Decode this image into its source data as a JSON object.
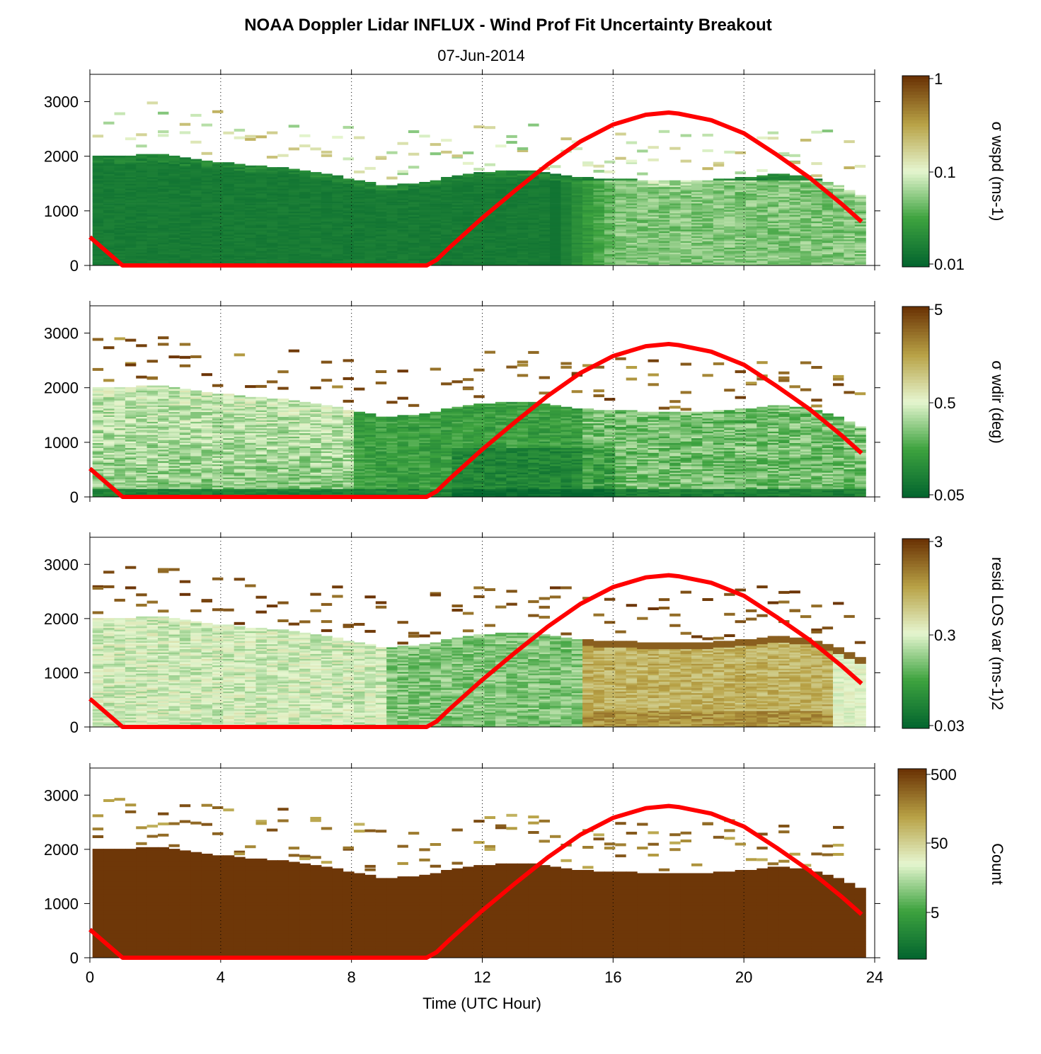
{
  "title": "NOAA Doppler Lidar INFLUX - Wind Prof Fit Uncertainty Breakout",
  "subtitle": "07-Jun-2014",
  "xlabel": "Time (UTC Hour)",
  "colors": {
    "dark_green": "#04662f",
    "mid_green": "#3ea33f",
    "light_green": "#e6f6d0",
    "tan": "#b8a246",
    "dark_brown": "#6b3305",
    "sun_line": "#ff0000"
  },
  "chart_data": [
    {
      "type": "heatmap",
      "panel": "sigma-wspd",
      "colorbar_label": "σ wspd (ms-1)",
      "colorbar_ticks": [
        "1",
        "0.1",
        "0.01"
      ],
      "xlim": [
        0,
        24
      ],
      "ylim": [
        0,
        3500
      ],
      "x_ticks": [
        "0",
        "4",
        "8",
        "12",
        "16",
        "20",
        "24"
      ],
      "y_ticks": [
        "0",
        "1000",
        "2000",
        "3000"
      ],
      "grid": "vertical dotted",
      "log_scale": true
    },
    {
      "type": "heatmap",
      "panel": "sigma-wdir",
      "colorbar_label": "σ wdir (deg)",
      "colorbar_ticks": [
        "5",
        "0.5",
        "0.05"
      ],
      "xlim": [
        0,
        24
      ],
      "ylim": [
        0,
        3500
      ],
      "x_ticks": [
        "0",
        "4",
        "8",
        "12",
        "16",
        "20",
        "24"
      ],
      "y_ticks": [
        "0",
        "1000",
        "2000",
        "3000"
      ],
      "grid": "vertical dotted",
      "log_scale": true
    },
    {
      "type": "heatmap",
      "panel": "resid-los-var",
      "colorbar_label": "resid LOS var (ms-1)2",
      "colorbar_ticks": [
        "3",
        "0.3",
        "0.03"
      ],
      "xlim": [
        0,
        24
      ],
      "ylim": [
        0,
        3500
      ],
      "x_ticks": [
        "0",
        "4",
        "8",
        "12",
        "16",
        "20",
        "24"
      ],
      "y_ticks": [
        "0",
        "1000",
        "2000",
        "3000"
      ],
      "grid": "vertical dotted",
      "log_scale": true
    },
    {
      "type": "heatmap",
      "panel": "count",
      "colorbar_label": "Count",
      "colorbar_ticks": [
        "500",
        "50",
        "5"
      ],
      "xlim": [
        0,
        24
      ],
      "ylim": [
        0,
        3500
      ],
      "x_ticks": [
        "0",
        "4",
        "8",
        "12",
        "16",
        "20",
        "24"
      ],
      "y_ticks": [
        "0",
        "1000",
        "2000",
        "3000"
      ],
      "grid": "vertical dotted",
      "log_scale": true
    }
  ],
  "mixing_height_top": {
    "x": [
      0,
      1,
      2,
      3,
      4,
      5,
      6,
      7,
      8,
      9,
      10,
      11,
      12,
      13,
      14,
      15,
      16,
      17,
      18,
      19,
      20,
      21,
      22,
      23,
      23.6
    ],
    "y": [
      2000,
      1990,
      2040,
      1950,
      1880,
      1820,
      1780,
      1700,
      1570,
      1450,
      1500,
      1600,
      1700,
      1740,
      1700,
      1600,
      1580,
      1550,
      1530,
      1560,
      1600,
      1660,
      1620,
      1450,
      1250
    ]
  },
  "sun_curve": {
    "x": [
      0,
      1,
      10.3,
      10.6,
      11,
      12,
      13,
      14,
      15,
      16,
      17,
      17.7,
      18,
      19,
      20,
      21,
      22,
      23,
      23.6
    ],
    "y": [
      520,
      0,
      0,
      100,
      330,
      870,
      1370,
      1850,
      2270,
      2580,
      2760,
      2800,
      2780,
      2660,
      2420,
      2030,
      1610,
      1120,
      800
    ]
  }
}
